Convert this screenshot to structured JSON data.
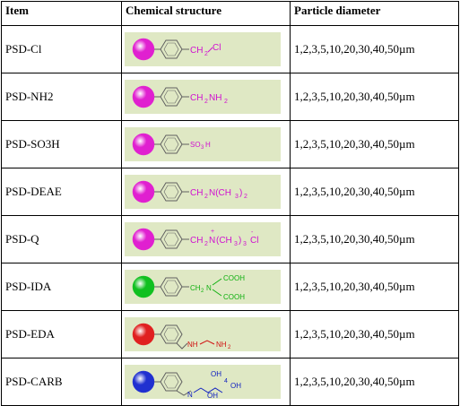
{
  "headers": {
    "item": "Item",
    "structure": "Chemical structure",
    "diameter": "Particle diameter"
  },
  "rows": [
    {
      "item": "PSD-Cl",
      "diameter": "1,2,3,5,10,20,30,40,50µm",
      "bead_color": "#e020d0",
      "label_color": "#d010d0",
      "substituent": "CH2Cl"
    },
    {
      "item": "PSD-NH2",
      "diameter": "1,2,3,5,10,20,30,40,50µm",
      "bead_color": "#e020d0",
      "label_color": "#d010d0",
      "substituent": "CH2NH2"
    },
    {
      "item": "PSD-SO3H",
      "diameter": "1,2,3,5,10,20,30,40,50µm",
      "bead_color": "#e020d0",
      "label_color": "#d010d0",
      "substituent": "SO3H"
    },
    {
      "item": "PSD-DEAE",
      "diameter": "1,2,3,5,10,20,30,40,50µm",
      "bead_color": "#e020d0",
      "label_color": "#d010d0",
      "substituent": "CH2N(CH3)2"
    },
    {
      "item": "PSD-Q",
      "diameter": "1,2,3,5,10,20,30,40,50µm",
      "bead_color": "#e020d0",
      "label_color": "#d010d0",
      "substituent": "CH2N+(CH3)3 Cl-"
    },
    {
      "item": "PSD-IDA",
      "diameter": "1,2,3,5,10,20,30,40,50µm",
      "bead_color": "#10c020",
      "label_color": "#10b010",
      "substituent": "CH2N(CH2COOH)2"
    },
    {
      "item": "PSD-EDA",
      "diameter": "1,2,3,5,10,20,30,40,50µm",
      "bead_color": "#e02020",
      "label_color": "#d01010",
      "substituent": "CH2NH-CH2CH2-NH2"
    },
    {
      "item": "PSD-CARB",
      "diameter": "1,2,3,5,10,20,30,40,50µm",
      "bead_color": "#2030d0",
      "label_color": "#1020c0",
      "substituent": "CH2N(CH3)-sorbitol"
    }
  ],
  "colors": {
    "structure_background": "#dfe8c4",
    "ring": "#606060"
  }
}
